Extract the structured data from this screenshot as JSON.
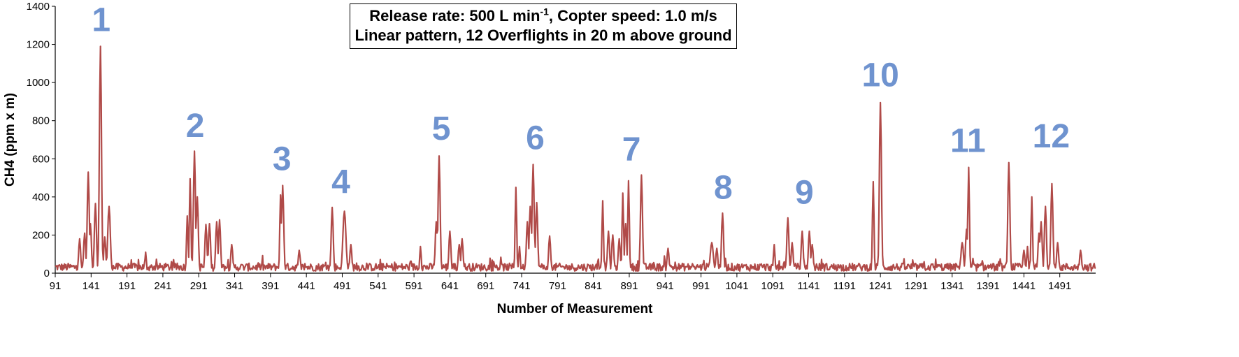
{
  "chart_data": {
    "type": "line",
    "title": {
      "line1_a": "Release rate: 500 L min",
      "line1_sup": "-1",
      "line1_b": ", Copter speed: 1.0 m/s",
      "line2": "Linear pattern, 12 Overflights in 20 m above ground"
    },
    "xlabel": "Number of Measurement",
    "ylabel": "CH4 (ppm x m)",
    "xlim": [
      91,
      1541
    ],
    "ylim": [
      0,
      1400
    ],
    "x_ticks": [
      91,
      141,
      191,
      241,
      291,
      341,
      391,
      441,
      491,
      541,
      591,
      641,
      691,
      741,
      791,
      841,
      891,
      941,
      991,
      1041,
      1091,
      1141,
      1191,
      1241,
      1291,
      1341,
      1391,
      1441,
      1491
    ],
    "y_ticks": [
      0,
      200,
      400,
      600,
      800,
      1000,
      1200,
      1400
    ],
    "line_color": "#b04a48",
    "label_color": "#6f93cf",
    "baseline_noise": 45,
    "peaks": [
      {
        "x": 125,
        "y": 180,
        "w": 2
      },
      {
        "x": 132,
        "y": 210,
        "w": 2
      },
      {
        "x": 137,
        "y": 530,
        "w": 2
      },
      {
        "x": 140,
        "y": 260,
        "w": 2
      },
      {
        "x": 147,
        "y": 365,
        "w": 2
      },
      {
        "x": 154,
        "y": 1190,
        "w": 2
      },
      {
        "x": 160,
        "y": 190,
        "w": 2
      },
      {
        "x": 166,
        "y": 350,
        "w": 2.5
      },
      {
        "x": 217,
        "y": 110,
        "w": 1.5
      },
      {
        "x": 275,
        "y": 300,
        "w": 1.5
      },
      {
        "x": 279,
        "y": 495,
        "w": 1.5
      },
      {
        "x": 285,
        "y": 640,
        "w": 2
      },
      {
        "x": 289,
        "y": 400,
        "w": 2
      },
      {
        "x": 301,
        "y": 255,
        "w": 2
      },
      {
        "x": 306,
        "y": 260,
        "w": 2
      },
      {
        "x": 316,
        "y": 270,
        "w": 2
      },
      {
        "x": 320,
        "y": 280,
        "w": 2
      },
      {
        "x": 337,
        "y": 150,
        "w": 2
      },
      {
        "x": 405,
        "y": 410,
        "w": 1.5
      },
      {
        "x": 408,
        "y": 460,
        "w": 2
      },
      {
        "x": 431,
        "y": 120,
        "w": 2
      },
      {
        "x": 477,
        "y": 345,
        "w": 2
      },
      {
        "x": 494,
        "y": 325,
        "w": 3
      },
      {
        "x": 503,
        "y": 150,
        "w": 2
      },
      {
        "x": 600,
        "y": 140,
        "w": 1.5
      },
      {
        "x": 622,
        "y": 270,
        "w": 2
      },
      {
        "x": 626,
        "y": 615,
        "w": 2
      },
      {
        "x": 641,
        "y": 220,
        "w": 2
      },
      {
        "x": 654,
        "y": 150,
        "w": 2
      },
      {
        "x": 658,
        "y": 180,
        "w": 2
      },
      {
        "x": 733,
        "y": 450,
        "w": 1.5
      },
      {
        "x": 738,
        "y": 140,
        "w": 1.5
      },
      {
        "x": 749,
        "y": 270,
        "w": 2
      },
      {
        "x": 753,
        "y": 350,
        "w": 2
      },
      {
        "x": 757,
        "y": 570,
        "w": 2
      },
      {
        "x": 762,
        "y": 370,
        "w": 2
      },
      {
        "x": 780,
        "y": 195,
        "w": 2
      },
      {
        "x": 854,
        "y": 380,
        "w": 1.5
      },
      {
        "x": 862,
        "y": 220,
        "w": 2
      },
      {
        "x": 868,
        "y": 200,
        "w": 2
      },
      {
        "x": 877,
        "y": 180,
        "w": 2
      },
      {
        "x": 882,
        "y": 420,
        "w": 1.5
      },
      {
        "x": 886,
        "y": 260,
        "w": 2
      },
      {
        "x": 890,
        "y": 485,
        "w": 1.5
      },
      {
        "x": 908,
        "y": 515,
        "w": 2
      },
      {
        "x": 945,
        "y": 130,
        "w": 2
      },
      {
        "x": 1006,
        "y": 160,
        "w": 3
      },
      {
        "x": 1013,
        "y": 130,
        "w": 2
      },
      {
        "x": 1021,
        "y": 315,
        "w": 2
      },
      {
        "x": 1093,
        "y": 150,
        "w": 1.5
      },
      {
        "x": 1112,
        "y": 290,
        "w": 2
      },
      {
        "x": 1118,
        "y": 160,
        "w": 2
      },
      {
        "x": 1132,
        "y": 220,
        "w": 2
      },
      {
        "x": 1142,
        "y": 220,
        "w": 2
      },
      {
        "x": 1146,
        "y": 150,
        "w": 2
      },
      {
        "x": 1231,
        "y": 480,
        "w": 1.5
      },
      {
        "x": 1241,
        "y": 895,
        "w": 2
      },
      {
        "x": 1355,
        "y": 160,
        "w": 2.5
      },
      {
        "x": 1361,
        "y": 230,
        "w": 2
      },
      {
        "x": 1364,
        "y": 555,
        "w": 1.5
      },
      {
        "x": 1420,
        "y": 580,
        "w": 2
      },
      {
        "x": 1441,
        "y": 120,
        "w": 2
      },
      {
        "x": 1446,
        "y": 140,
        "w": 1.5
      },
      {
        "x": 1452,
        "y": 400,
        "w": 1.5
      },
      {
        "x": 1462,
        "y": 210,
        "w": 2
      },
      {
        "x": 1465,
        "y": 270,
        "w": 2
      },
      {
        "x": 1471,
        "y": 350,
        "w": 2
      },
      {
        "x": 1480,
        "y": 470,
        "w": 2
      },
      {
        "x": 1488,
        "y": 160,
        "w": 2
      },
      {
        "x": 1520,
        "y": 120,
        "w": 2
      }
    ],
    "annotations": [
      {
        "text": "1",
        "x": 155,
        "y": 1270
      },
      {
        "text": "2",
        "x": 286,
        "y": 715
      },
      {
        "text": "3",
        "x": 407,
        "y": 540
      },
      {
        "text": "4",
        "x": 489,
        "y": 420
      },
      {
        "text": "5",
        "x": 629,
        "y": 700
      },
      {
        "text": "6",
        "x": 760,
        "y": 650
      },
      {
        "text": "7",
        "x": 894,
        "y": 590
      },
      {
        "text": "8",
        "x": 1022,
        "y": 390
      },
      {
        "text": "9",
        "x": 1135,
        "y": 365
      },
      {
        "text": "10",
        "x": 1241,
        "y": 980
      },
      {
        "text": "11",
        "x": 1363,
        "y": 635
      },
      {
        "text": "12",
        "x": 1479,
        "y": 660
      }
    ]
  }
}
